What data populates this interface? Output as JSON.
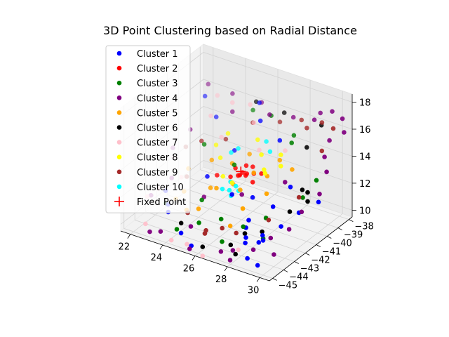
{
  "chart_data": {
    "type": "scatter",
    "projection": "3d",
    "title": "3D Point Clustering based on Radial Distance",
    "xlabel": "",
    "ylabel": "",
    "zlabel": "",
    "xlim": [
      21.4,
      30.6
    ],
    "ylim": [
      -45.3,
      -37.7
    ],
    "zlim": [
      9.5,
      18.6
    ],
    "x_ticks": [
      22,
      24,
      26,
      28,
      30
    ],
    "y_ticks": [
      -45,
      -44,
      -43,
      -42,
      -41,
      -40,
      -39,
      -38
    ],
    "z_ticks": [
      10,
      12,
      14,
      16,
      18
    ],
    "x_tick_labels": [
      "22",
      "24",
      "26",
      "28",
      "30"
    ],
    "y_tick_labels": [
      "−45",
      "−44",
      "−43",
      "−42",
      "−41",
      "−40",
      "−39",
      "−38"
    ],
    "z_tick_labels": [
      "10",
      "12",
      "14",
      "16",
      "18"
    ],
    "grid": true,
    "legend_position": "upper-left",
    "series": [
      {
        "name": "Cluster 1",
        "color": "#0000ff",
        "points": [
          [
            22.1,
            -38.6,
            15.6
          ],
          [
            23.0,
            -38.9,
            14.6
          ],
          [
            24.6,
            -39.6,
            13.2
          ],
          [
            26.8,
            -41.2,
            11.6
          ],
          [
            27.6,
            -43.0,
            10.8
          ],
          [
            28.5,
            -44.4,
            10.9
          ],
          [
            29.2,
            -43.8,
            11.0
          ],
          [
            29.5,
            -42.6,
            11.4
          ],
          [
            28.6,
            -40.4,
            12.6
          ],
          [
            27.2,
            -39.3,
            14.8
          ],
          [
            25.2,
            -38.2,
            16.1
          ],
          [
            23.6,
            -44.2,
            11.1
          ],
          [
            24.8,
            -44.8,
            10.4
          ],
          [
            22.9,
            -43.4,
            11.9
          ],
          [
            26.2,
            -42.2,
            12.2
          ],
          [
            29.8,
            -41.4,
            11.8
          ],
          [
            28.0,
            -43.6,
            10.6
          ],
          [
            25.8,
            -39.0,
            15.5
          ],
          [
            28.2,
            -41.4,
            11.6
          ],
          [
            29.2,
            -44.2,
            11.1
          ],
          [
            28.7,
            -44.5,
            9.9
          ],
          [
            29.6,
            -44.9,
            10.0
          ],
          [
            24.2,
            -41.5,
            12.3
          ],
          [
            27.3,
            -42.3,
            10.8
          ],
          [
            28.9,
            -43.4,
            11.0
          ],
          [
            30.2,
            -40.2,
            12.0
          ],
          [
            23.4,
            -43.9,
            11.4
          ],
          [
            25.5,
            -44.9,
            9.8
          ]
        ]
      },
      {
        "name": "Cluster 2",
        "color": "#ff0000",
        "points": [
          [
            25.6,
            -40.6,
            12.4
          ],
          [
            25.9,
            -40.4,
            12.5
          ],
          [
            26.2,
            -40.2,
            12.5
          ],
          [
            25.7,
            -40.9,
            12.6
          ],
          [
            26.0,
            -40.0,
            12.8
          ],
          [
            25.4,
            -40.7,
            12.9
          ],
          [
            26.4,
            -40.6,
            12.2
          ],
          [
            25.8,
            -40.3,
            13.0
          ],
          [
            25.3,
            -41.0,
            12.4
          ],
          [
            26.1,
            -40.8,
            12.7
          ],
          [
            24.4,
            -40.9,
            12.1
          ],
          [
            26.6,
            -40.1,
            12.6
          ],
          [
            25.5,
            -40.2,
            12.3
          ]
        ]
      },
      {
        "name": "Cluster 3",
        "color": "#008000",
        "points": [
          [
            23.4,
            -40.6,
            13.8
          ],
          [
            24.6,
            -42.6,
            11.4
          ],
          [
            26.2,
            -43.2,
            11.0
          ],
          [
            27.2,
            -44.6,
            10.6
          ],
          [
            28.8,
            -43.2,
            10.6
          ],
          [
            29.5,
            -40.6,
            12.3
          ],
          [
            28.0,
            -39.4,
            15.0
          ],
          [
            26.2,
            -38.6,
            15.8
          ],
          [
            24.8,
            -38.2,
            15.4
          ],
          [
            22.7,
            -43.1,
            10.7
          ],
          [
            24.4,
            -44.6,
            10.4
          ],
          [
            28.3,
            -42.2,
            11.3
          ],
          [
            29.8,
            -39.8,
            13.2
          ],
          [
            27.6,
            -38.6,
            14.9
          ],
          [
            25.4,
            -40.8,
            13.2
          ],
          [
            25.3,
            -43.9,
            10.8
          ],
          [
            27.5,
            -43.1,
            10.9
          ]
        ]
      },
      {
        "name": "Cluster 4",
        "color": "#800080",
        "points": [
          [
            22.1,
            -38.3,
            16.3
          ],
          [
            21.8,
            -41.1,
            13.2
          ],
          [
            22.0,
            -43.4,
            11.2
          ],
          [
            23.6,
            -44.9,
            10.1
          ],
          [
            25.6,
            -45.2,
            9.8
          ],
          [
            27.4,
            -45.0,
            10.2
          ],
          [
            29.0,
            -44.4,
            10.6
          ],
          [
            30.0,
            -42.6,
            11.4
          ],
          [
            30.4,
            -40.4,
            12.8
          ],
          [
            29.8,
            -38.6,
            15.4
          ],
          [
            30.2,
            -38.0,
            16.8
          ],
          [
            29.5,
            -37.9,
            17.0
          ],
          [
            30.5,
            -38.3,
            16.1
          ],
          [
            28.6,
            -38.2,
            16.2
          ],
          [
            27.1,
            -37.9,
            15.6
          ],
          [
            25.2,
            -38.0,
            16.0
          ],
          [
            23.6,
            -38.3,
            16.2
          ],
          [
            22.2,
            -40.1,
            14.1
          ],
          [
            22.6,
            -42.4,
            12.1
          ],
          [
            25.0,
            -44.2,
            10.6
          ],
          [
            28.0,
            -44.8,
            10.4
          ],
          [
            30.1,
            -41.6,
            12.1
          ],
          [
            29.9,
            -39.2,
            14.6
          ],
          [
            28.4,
            -40.6,
            13.0
          ],
          [
            26.4,
            -41.6,
            11.9
          ],
          [
            24.6,
            -42.4,
            11.5
          ],
          [
            30.0,
            -44.0,
            10.4
          ],
          [
            29.4,
            -43.4,
            11.0
          ],
          [
            30.3,
            -39.6,
            13.9
          ],
          [
            28.7,
            -37.8,
            16.5
          ],
          [
            26.3,
            -38.9,
            16.1
          ],
          [
            24.0,
            -38.9,
            15.4
          ],
          [
            23.0,
            -45.0,
            9.9
          ],
          [
            27.9,
            -44.9,
            9.7
          ]
        ]
      },
      {
        "name": "Cluster 5",
        "color": "#ffa500",
        "points": [
          [
            23.1,
            -41.6,
            12.5
          ],
          [
            23.5,
            -42.6,
            11.6
          ],
          [
            24.2,
            -43.4,
            11.0
          ],
          [
            25.1,
            -42.0,
            12.1
          ],
          [
            25.6,
            -41.2,
            12.1
          ],
          [
            26.6,
            -40.8,
            13.1
          ],
          [
            27.3,
            -40.6,
            13.0
          ],
          [
            27.8,
            -41.4,
            12.4
          ],
          [
            27.0,
            -42.4,
            11.6
          ],
          [
            25.0,
            -40.4,
            12.9
          ],
          [
            24.0,
            -40.8,
            13.0
          ],
          [
            23.2,
            -42.9,
            11.1
          ],
          [
            24.6,
            -41.8,
            11.8
          ],
          [
            26.3,
            -41.6,
            12.2
          ],
          [
            27.4,
            -39.6,
            13.6
          ],
          [
            28.3,
            -39.8,
            13.4
          ],
          [
            26.9,
            -43.4,
            10.9
          ],
          [
            24.8,
            -43.2,
            11.2
          ],
          [
            25.6,
            -39.7,
            13.4
          ]
        ]
      },
      {
        "name": "Cluster 6",
        "color": "#000000",
        "points": [
          [
            25.0,
            -38.2,
            16.1
          ],
          [
            26.6,
            -38.0,
            15.8
          ],
          [
            28.6,
            -38.9,
            14.6
          ],
          [
            29.8,
            -40.6,
            12.8
          ],
          [
            29.5,
            -41.8,
            12.0
          ],
          [
            28.6,
            -43.0,
            10.9
          ],
          [
            27.6,
            -44.4,
            10.4
          ],
          [
            26.2,
            -44.9,
            10.0
          ],
          [
            24.4,
            -44.2,
            10.6
          ],
          [
            23.4,
            -43.1,
            11.1
          ],
          [
            27.8,
            -43.4,
            10.7
          ],
          [
            28.9,
            -38.0,
            15.8
          ],
          [
            29.2,
            -40.2,
            12.5
          ],
          [
            28.1,
            -44.7,
            10.1
          ],
          [
            30.0,
            -40.9,
            12.4
          ]
        ]
      },
      {
        "name": "Cluster 7",
        "color": "#ffc0cb",
        "points": [
          [
            22.6,
            -38.2,
            15.6
          ],
          [
            23.0,
            -39.4,
            15.0
          ],
          [
            22.2,
            -41.6,
            13.0
          ],
          [
            21.9,
            -43.6,
            11.2
          ],
          [
            22.6,
            -44.8,
            10.2
          ],
          [
            24.4,
            -45.1,
            9.9
          ],
          [
            26.4,
            -45.2,
            9.6
          ],
          [
            28.2,
            -44.6,
            10.4
          ],
          [
            23.8,
            -38.6,
            15.8
          ],
          [
            25.4,
            -39.0,
            15.2
          ],
          [
            26.4,
            -40.0,
            14.2
          ],
          [
            27.4,
            -39.1,
            14.0
          ],
          [
            24.2,
            -40.2,
            14.4
          ],
          [
            23.2,
            -42.4,
            12.4
          ],
          [
            22.3,
            -43.2,
            11.7
          ],
          [
            25.3,
            -45.0,
            9.9
          ],
          [
            24.9,
            -38.6,
            16.1
          ]
        ]
      },
      {
        "name": "Cluster 8",
        "color": "#ffff00",
        "points": [
          [
            23.8,
            -40.1,
            13.6
          ],
          [
            24.4,
            -40.6,
            13.2
          ],
          [
            25.1,
            -41.4,
            12.6
          ],
          [
            26.6,
            -40.1,
            14.0
          ],
          [
            27.1,
            -40.6,
            13.4
          ],
          [
            25.9,
            -39.4,
            14.4
          ],
          [
            27.6,
            -39.8,
            14.2
          ],
          [
            28.0,
            -40.4,
            13.9
          ],
          [
            24.2,
            -39.6,
            14.3
          ],
          [
            26.0,
            -41.9,
            12.8
          ],
          [
            27.5,
            -41.1,
            13.6
          ]
        ]
      },
      {
        "name": "Cluster 9",
        "color": "#a52a2a",
        "points": [
          [
            22.6,
            -41.1,
            13.6
          ],
          [
            23.4,
            -42.2,
            12.4
          ],
          [
            24.4,
            -43.6,
            11.0
          ],
          [
            26.0,
            -44.4,
            10.6
          ],
          [
            27.4,
            -43.6,
            10.7
          ],
          [
            28.6,
            -42.4,
            11.4
          ],
          [
            29.4,
            -40.8,
            12.4
          ],
          [
            29.6,
            -39.0,
            14.8
          ],
          [
            29.0,
            -38.1,
            16.1
          ],
          [
            27.6,
            -37.9,
            15.6
          ],
          [
            26.4,
            -38.1,
            15.1
          ],
          [
            25.2,
            -38.8,
            15.0
          ],
          [
            24.2,
            -39.8,
            14.0
          ],
          [
            23.1,
            -40.4,
            13.8
          ],
          [
            26.6,
            -43.7,
            10.8
          ],
          [
            25.8,
            -44.0,
            10.5
          ],
          [
            29.9,
            -38.4,
            16.2
          ],
          [
            28.2,
            -38.3,
            15.5
          ]
        ]
      },
      {
        "name": "Cluster 10",
        "color": "#00ffff",
        "points": [
          [
            25.1,
            -40.0,
            13.8
          ],
          [
            25.7,
            -41.7,
            12.0
          ],
          [
            25.9,
            -41.4,
            12.2
          ],
          [
            26.2,
            -41.6,
            12.1
          ],
          [
            26.0,
            -42.0,
            11.9
          ],
          [
            25.4,
            -41.9,
            12.1
          ],
          [
            26.3,
            -39.2,
            14.3
          ],
          [
            26.8,
            -39.6,
            14.0
          ],
          [
            24.8,
            -40.2,
            13.5
          ],
          [
            25.5,
            -41.3,
            12.3
          ]
        ]
      }
    ],
    "fixed_point": {
      "name": "Fixed Point",
      "color": "#ff0000",
      "marker": "+",
      "point": [
        25.6,
        -40.5,
        12.6
      ]
    }
  }
}
